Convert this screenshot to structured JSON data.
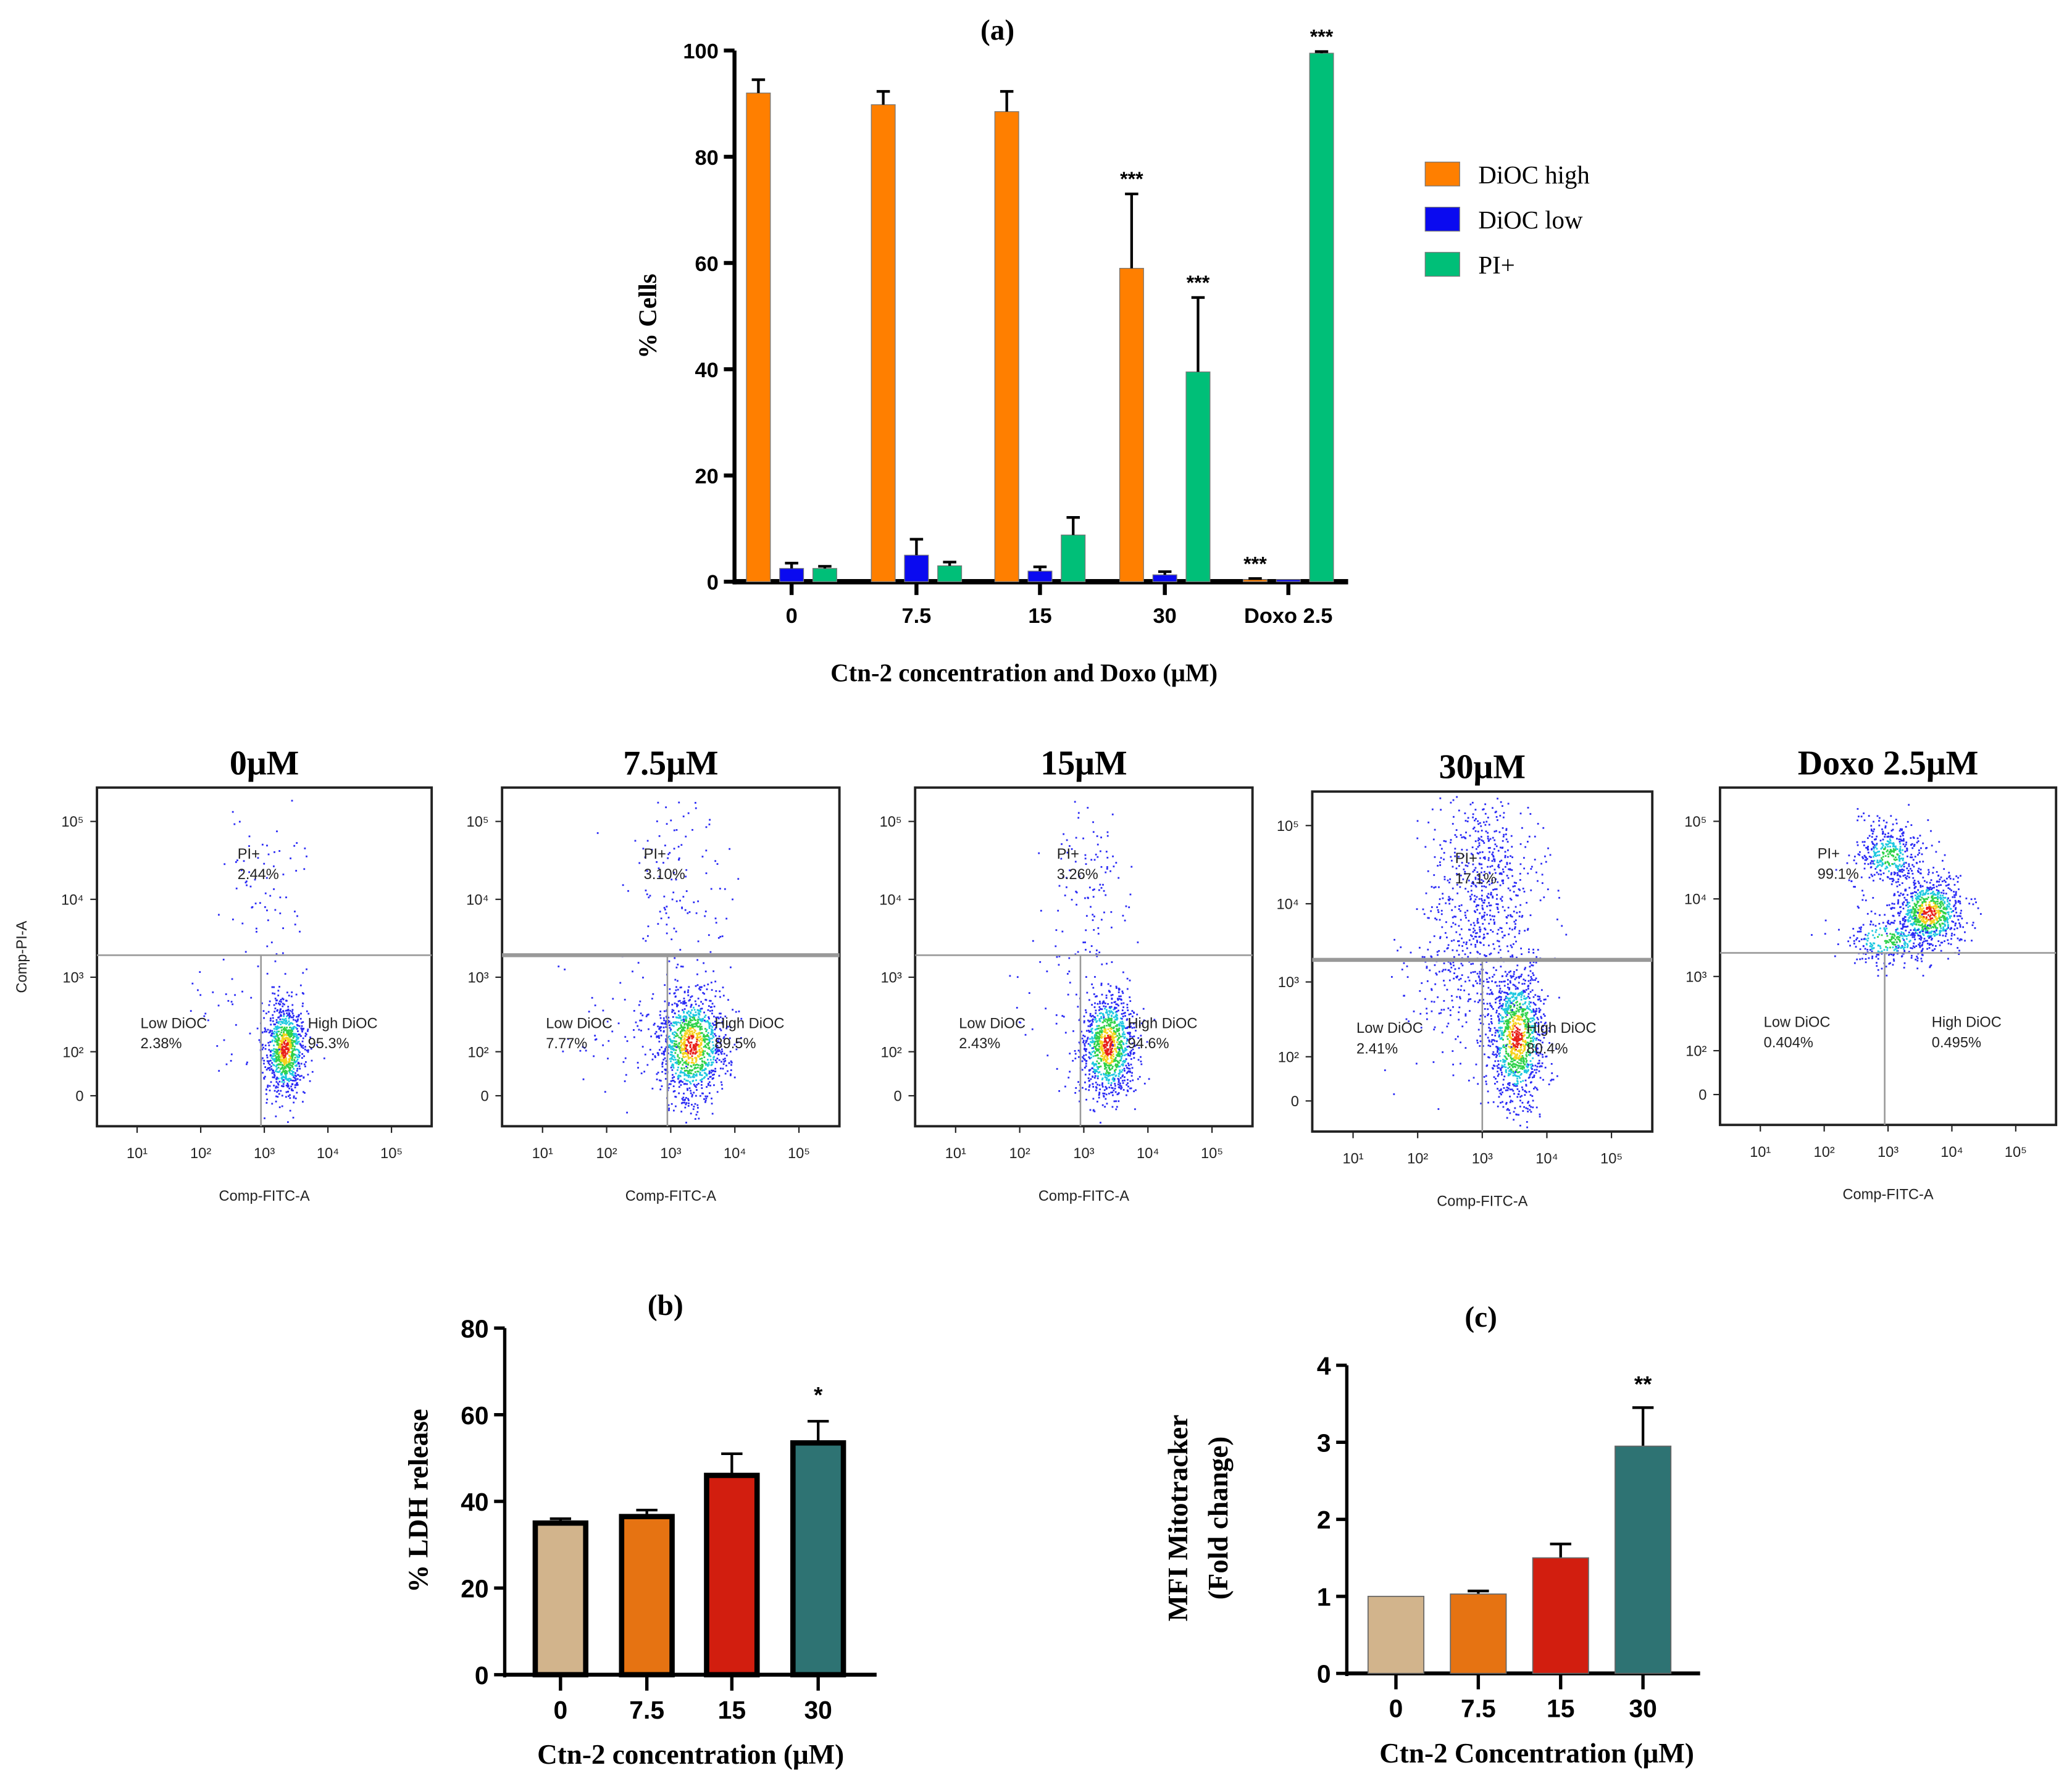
{
  "colors": {
    "dioc_high": "#FF7F00",
    "dioc_low": "#0A0AF0",
    "pi_pos": "#00BF78",
    "tan": "#D2B48C",
    "orange": "#E67312",
    "red": "#D21E0F",
    "teal": "#2E7373"
  },
  "chart_data": [
    {
      "id": "a",
      "type": "bar",
      "title": "(a)",
      "xlabel": "Ctn-2 concentration and Doxo (μM)",
      "ylabel": "% Cells",
      "ylim": [
        0,
        100
      ],
      "yticks": [
        "0",
        "20",
        "40",
        "60",
        "80",
        "100"
      ],
      "categories": [
        "0",
        "7.5",
        "15",
        "30",
        "Doxo 2.5"
      ],
      "legend_position": "right",
      "series": [
        {
          "name": "DiOC high",
          "color": "#FF7F00",
          "values": [
            92,
            89.8,
            88.5,
            59,
            0.4
          ],
          "errors": [
            2.5,
            2.5,
            3.8,
            14,
            0.2
          ],
          "significance": [
            "",
            "",
            "",
            "***",
            "***"
          ]
        },
        {
          "name": "DiOC low",
          "color": "#0A0AF0",
          "values": [
            2.5,
            5,
            2,
            1.3,
            0.4
          ],
          "errors": [
            1,
            3,
            0.8,
            0.6,
            0
          ],
          "significance": [
            "",
            "",
            "",
            "",
            ""
          ]
        },
        {
          "name": "PI+",
          "color": "#00BF78",
          "values": [
            2.5,
            3,
            8.8,
            39.5,
            99.5
          ],
          "errors": [
            0.4,
            0.7,
            3.3,
            14,
            0.3
          ],
          "significance": [
            "",
            "",
            "",
            "***",
            "***"
          ]
        }
      ]
    },
    {
      "id": "flow",
      "type": "scatter",
      "xlabel": "Comp-FITC-A",
      "ylabel": "Comp-PI-A",
      "xticks": [
        "10¹",
        "10²",
        "10³",
        "10⁴",
        "10⁵"
      ],
      "yticks": [
        "10⁵",
        "10⁴",
        "10³",
        "10²",
        "0"
      ],
      "panels": [
        {
          "title": "0μM",
          "pi_label": "PI+",
          "pi_pct": "2.44%",
          "low_label": "Low DiOC",
          "low_pct": "2.38%",
          "high_label": "High DiOC",
          "high_pct": "95.3%"
        },
        {
          "title": "7.5μM",
          "pi_label": "PI+",
          "pi_pct": "3.10%",
          "low_label": "Low DiOC",
          "low_pct": "7.77%",
          "high_label": "High DiOC",
          "high_pct": "89.5%"
        },
        {
          "title": "15μM",
          "pi_label": "PI+",
          "pi_pct": "3.26%",
          "low_label": "Low DiOC",
          "low_pct": "2.43%",
          "high_label": "High DiOC",
          "high_pct": "94.6%"
        },
        {
          "title": "30μM",
          "pi_label": "PI+",
          "pi_pct": "17.1%",
          "low_label": "Low DiOC",
          "low_pct": "2.41%",
          "high_label": "High DiOC",
          "high_pct": "80.4%"
        },
        {
          "title": "Doxo 2.5μM",
          "pi_label": "PI+",
          "pi_pct": "99.1%",
          "low_label": "Low DiOC",
          "low_pct": "0.404%",
          "high_label": "High DiOC",
          "high_pct": "0.495%"
        }
      ]
    },
    {
      "id": "b",
      "type": "bar",
      "title": "(b)",
      "xlabel": "Ctn-2 concentration (μM)",
      "ylabel": "% LDH release",
      "ylim": [
        0,
        80
      ],
      "yticks": [
        "0",
        "20",
        "40",
        "60",
        "80"
      ],
      "categories": [
        "0",
        "7.5",
        "15",
        "30"
      ],
      "values": [
        35,
        36.5,
        46,
        53.5
      ],
      "errors": [
        1,
        1.5,
        5,
        5
      ],
      "colors": [
        "#D2B48C",
        "#E67312",
        "#D21E0F",
        "#2E7373"
      ],
      "significance": [
        "",
        "",
        "",
        "*"
      ]
    },
    {
      "id": "c",
      "type": "bar",
      "title": "(c)",
      "xlabel": "Ctn-2 Concentration (μM)",
      "ylabel": [
        "MFI Mitotracker",
        "(Fold change)"
      ],
      "ylim": [
        0,
        4
      ],
      "yticks": [
        "0",
        "1",
        "2",
        "3",
        "4"
      ],
      "categories": [
        "0",
        "7.5",
        "15",
        "30"
      ],
      "values": [
        1.0,
        1.03,
        1.5,
        2.95
      ],
      "errors": [
        0,
        0.04,
        0.18,
        0.5
      ],
      "colors": [
        "#D2B48C",
        "#E67312",
        "#D21E0F",
        "#2E7373"
      ],
      "significance": [
        "",
        "",
        "",
        "**"
      ]
    }
  ]
}
